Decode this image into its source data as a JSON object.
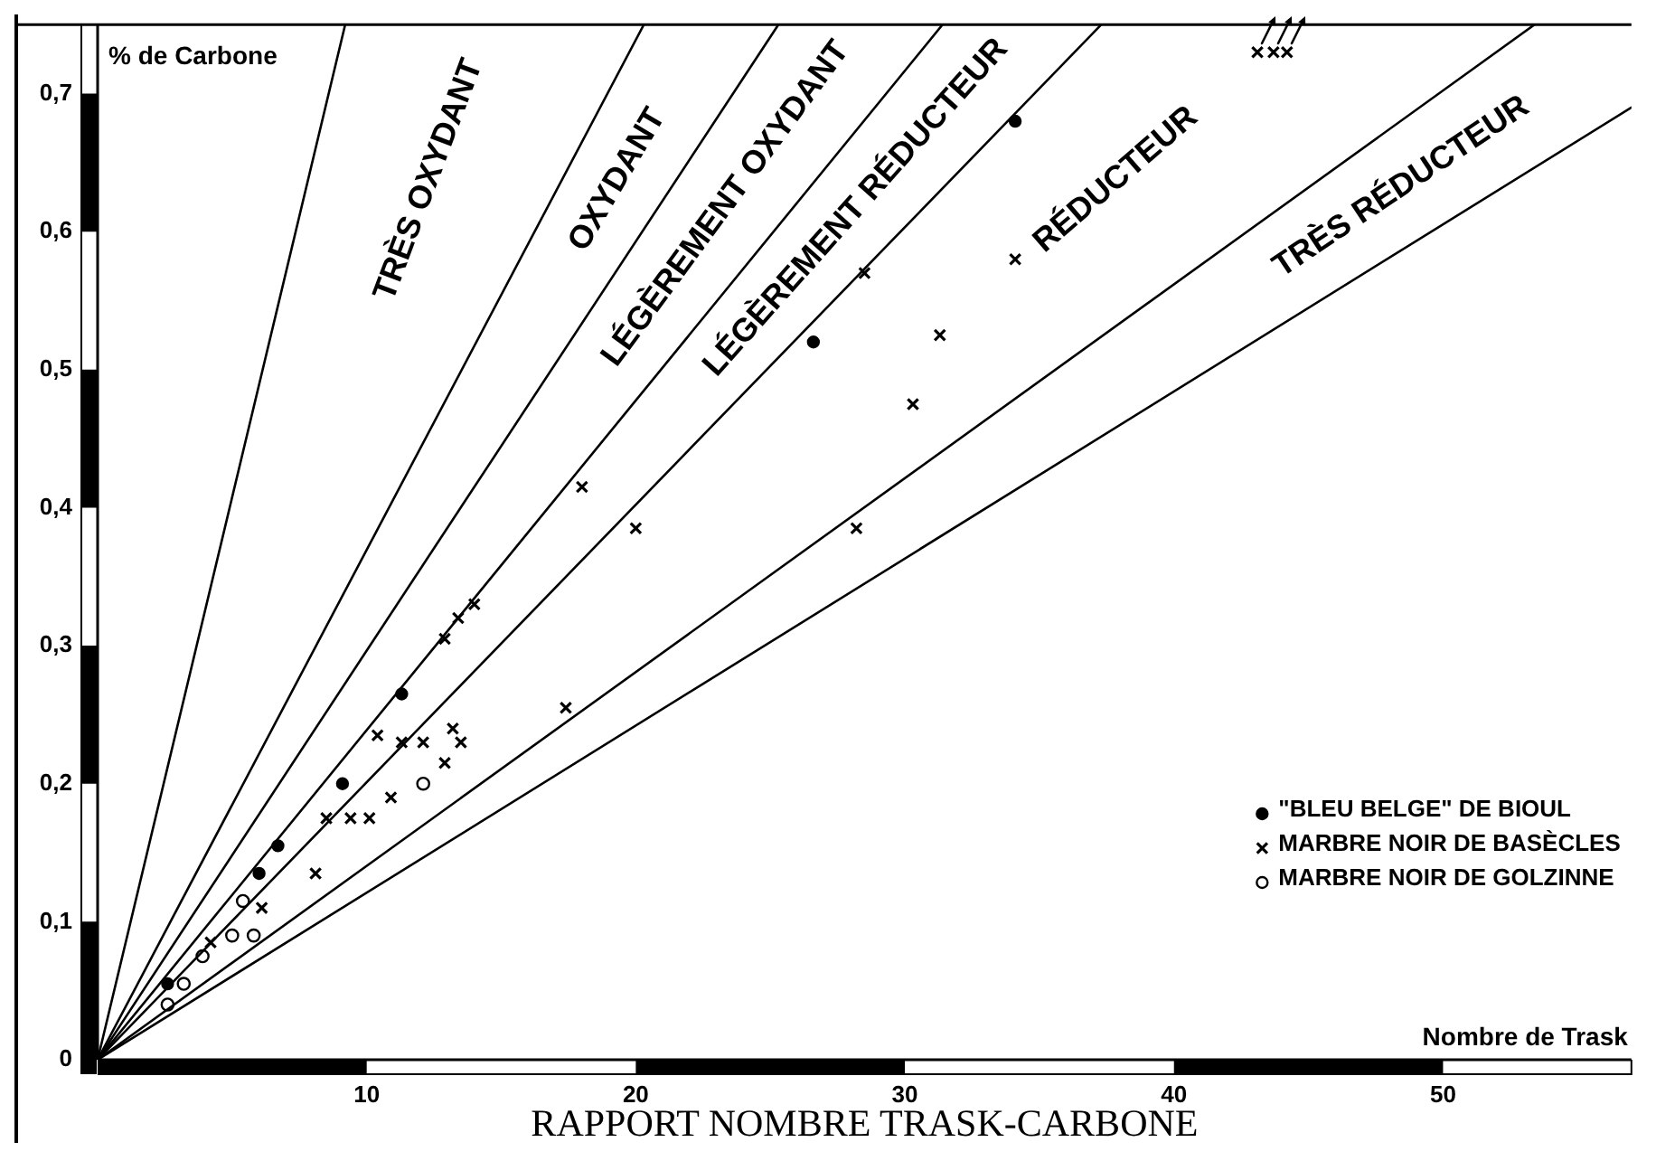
{
  "chart_data": {
    "type": "scatter",
    "title": "RAPPORT NOMBRE TRASK-CARBONE",
    "xlabel": "Nombre de Trask",
    "ylabel": "% de Carbone",
    "xlim": [
      0,
      57
    ],
    "xticks": [
      10,
      20,
      30,
      40,
      50
    ],
    "ylim": [
      0,
      0.75
    ],
    "yticks": [
      0,
      {
        "value": 0.1,
        "label": "0,1"
      },
      {
        "value": 0.2,
        "label": "0,2"
      },
      {
        "value": 0.3,
        "label": "0,3"
      },
      {
        "value": 0.4,
        "label": "0,4"
      },
      {
        "value": 0.5,
        "label": "0,5"
      },
      {
        "value": 0.6,
        "label": "0,6"
      },
      {
        "value": 0.7,
        "label": "0,7"
      }
    ],
    "grid": false,
    "legend": "bottom right",
    "annotations": [
      "TRÈS OXYDANT",
      "OXYDANT",
      "LÉGÈREMENT OXYDANT",
      "LÉGÈREMENT RÉDUCTEUR",
      "RÉDUCTEUR",
      "TRÈS RÉDUCTEUR"
    ],
    "series": [
      {
        "type": "line",
        "color": "#000000",
        "marker": "none",
        "x": [
          0,
          9.2
        ],
        "values": [
          0,
          0.75
        ]
      },
      {
        "type": "line",
        "color": "#000000",
        "marker": "none",
        "x": [
          0,
          20.3
        ],
        "values": [
          0,
          0.75
        ]
      },
      {
        "type": "line",
        "color": "#000000",
        "marker": "none",
        "x": [
          0,
          25.3
        ],
        "values": [
          0,
          0.75
        ]
      },
      {
        "type": "line",
        "color": "#000000",
        "marker": "none",
        "x": [
          0,
          31.4
        ],
        "values": [
          0,
          0.75
        ]
      },
      {
        "type": "line",
        "color": "#000000",
        "marker": "none",
        "x": [
          0,
          37.3
        ],
        "values": [
          0,
          0.75
        ]
      },
      {
        "type": "line",
        "color": "#000000",
        "marker": "none",
        "x": [
          0,
          53.4
        ],
        "values": [
          0,
          0.75
        ]
      },
      {
        "type": "line",
        "color": "#000000",
        "marker": "none",
        "x": [
          0,
          57
        ],
        "values": [
          0,
          0.69
        ]
      },
      {
        "name": "\"BLEU BELGE\" DE BIOUL",
        "color": "#000000",
        "marker": "circle",
        "x": [
          2.6,
          6.0,
          6.7,
          9.1,
          11.3,
          26.6,
          34.1
        ],
        "values": [
          0.055,
          0.135,
          0.155,
          0.2,
          0.265,
          0.52,
          0.68
        ]
      },
      {
        "name": "MARBRE NOIR DE BASÈCLES",
        "color": "#000000",
        "marker": "cross",
        "x": [
          4.2,
          6.1,
          8.1,
          8.5,
          9.4,
          10.1,
          10.9,
          10.4,
          11.3,
          12.1,
          13.2,
          13.5,
          12.9,
          12.9,
          13.4,
          14.0,
          17.4,
          18.0,
          20.0,
          28.2,
          28.5,
          30.3,
          31.3,
          34.1,
          43.1,
          43.7,
          44.2
        ],
        "values": [
          0.085,
          0.11,
          0.135,
          0.175,
          0.175,
          0.175,
          0.19,
          0.235,
          0.23,
          0.23,
          0.24,
          0.23,
          0.215,
          0.305,
          0.32,
          0.33,
          0.255,
          0.415,
          0.385,
          0.385,
          0.57,
          0.475,
          0.525,
          0.58,
          0.73,
          0.73,
          0.73
        ]
      },
      {
        "name": "MARBRE NOIR DE GOLZINNE",
        "color": "#000000",
        "marker": "circle",
        "x": [
          2.6,
          3.2,
          3.9,
          5.0,
          5.4,
          5.8,
          12.1
        ],
        "values": [
          0.04,
          0.055,
          0.075,
          0.09,
          0.115,
          0.09,
          0.2
        ]
      }
    ]
  }
}
